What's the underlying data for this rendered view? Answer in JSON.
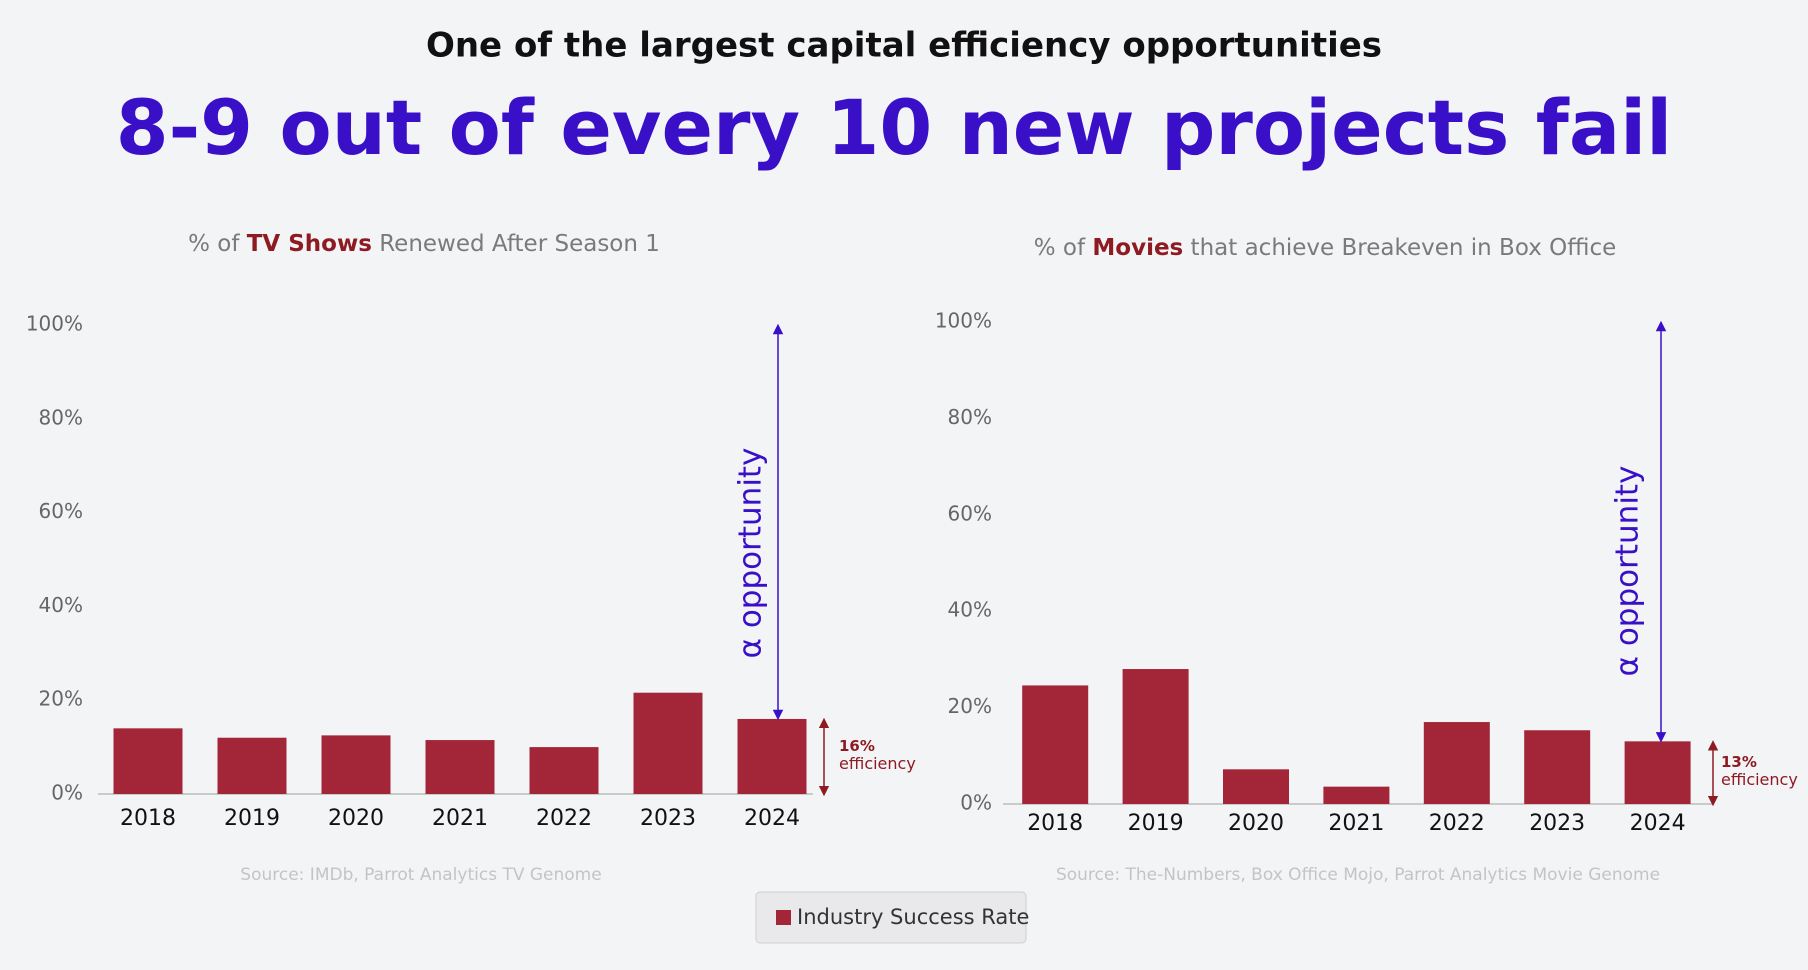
{
  "header": {
    "kicker": "One of the largest capital efficiency opportunities",
    "headline": "8-9 out of every 10 new projects fail"
  },
  "chart_data": [
    {
      "type": "bar",
      "title": [
        "% of ",
        "TV Shows",
        " Renewed After Season 1"
      ],
      "categories": [
        "2018",
        "2019",
        "2020",
        "2021",
        "2022",
        "2023",
        "2024"
      ],
      "values": [
        14,
        12,
        12.5,
        11.5,
        10,
        21.6,
        16
      ],
      "color": "#a32638",
      "ylim": [
        0,
        100
      ],
      "yticks": [
        {
          "value": 0,
          "label": "0%"
        },
        {
          "value": 20,
          "label": "20%"
        },
        {
          "value": 40,
          "label": "40%"
        },
        {
          "value": 60,
          "label": "60%"
        },
        {
          "value": 80,
          "label": "80%"
        },
        {
          "value": 100,
          "label": "100%"
        }
      ],
      "annotations": {
        "opportunity": "α opportunity",
        "efficiency_value": "16%",
        "efficiency": "efficiency"
      },
      "source": "Source: IMDb, Parrot Analytics TV Genome"
    },
    {
      "type": "bar",
      "title": [
        "% of ",
        "Movies",
        " that achieve Breakeven in Box Office"
      ],
      "categories": [
        "2018",
        "2019",
        "2020",
        "2021",
        "2022",
        "2023",
        "2024"
      ],
      "values": [
        24.6,
        28,
        7.2,
        3.6,
        17,
        15.3,
        13
      ],
      "color": "#a32638",
      "ylim": [
        0,
        100
      ],
      "yticks": [
        {
          "value": 0,
          "label": "0%"
        },
        {
          "value": 20,
          "label": "20%"
        },
        {
          "value": 40,
          "label": "40%"
        },
        {
          "value": 60,
          "label": "60%"
        },
        {
          "value": 80,
          "label": "80%"
        },
        {
          "value": 100,
          "label": "100%"
        }
      ],
      "annotations": {
        "opportunity": "α opportunity",
        "efficiency_value": "13%",
        "efficiency": "efficiency"
      },
      "source": "Source: The-Numbers, Box Office Mojo, Parrot Analytics Movie Genome"
    }
  ],
  "legend": {
    "label": "Industry Success Rate",
    "color": "#a32638"
  }
}
